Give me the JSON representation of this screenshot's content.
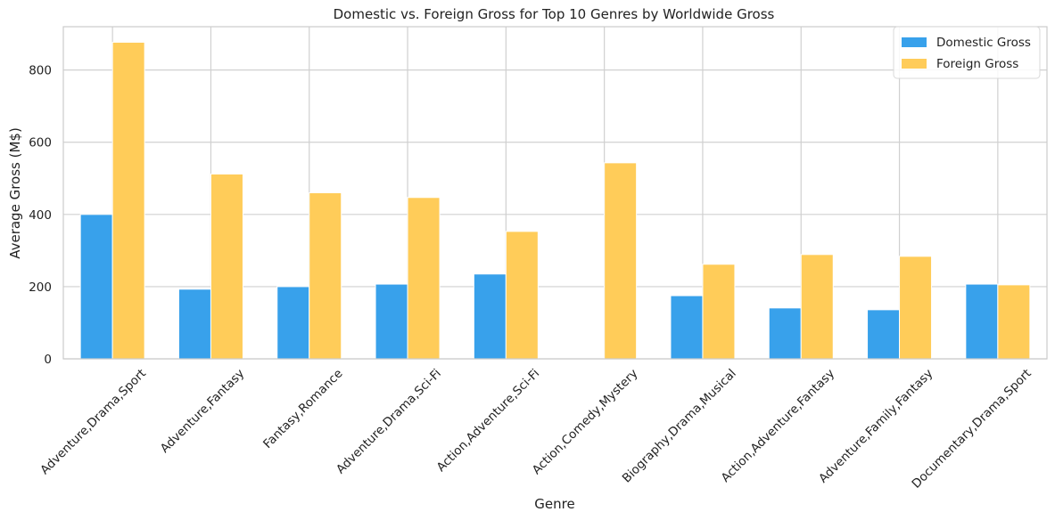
{
  "chart_data": {
    "type": "bar",
    "title": "Domestic vs. Foreign Gross for Top 10 Genres by Worldwide Gross",
    "xlabel": "Genre",
    "ylabel": "Average Gross (M$)",
    "categories": [
      "Adventure,Drama,Sport",
      "Adventure,Fantasy",
      "Fantasy,Romance",
      "Adventure,Drama,Sci-Fi",
      "Action,Adventure,Sci-Fi",
      "Action,Comedy,Mystery",
      "Biography,Drama,Musical",
      "Action,Adventure,Fantasy",
      "Adventure,Family,Fantasy",
      "Documentary,Drama,Sport"
    ],
    "series": [
      {
        "name": "Domestic Gross",
        "color": "#38a1eb",
        "values": [
          400,
          193,
          200,
          207,
          235,
          0,
          175,
          141,
          136,
          207
        ]
      },
      {
        "name": "Foreign Gross",
        "color": "#ffcc59",
        "values": [
          877,
          512,
          460,
          447,
          353,
          543,
          262,
          289,
          284,
          205
        ]
      }
    ],
    "ylim": [
      0,
      920
    ],
    "yticks": [
      0,
      200,
      400,
      600,
      800
    ],
    "grid": true,
    "legend_position": "top-right"
  }
}
